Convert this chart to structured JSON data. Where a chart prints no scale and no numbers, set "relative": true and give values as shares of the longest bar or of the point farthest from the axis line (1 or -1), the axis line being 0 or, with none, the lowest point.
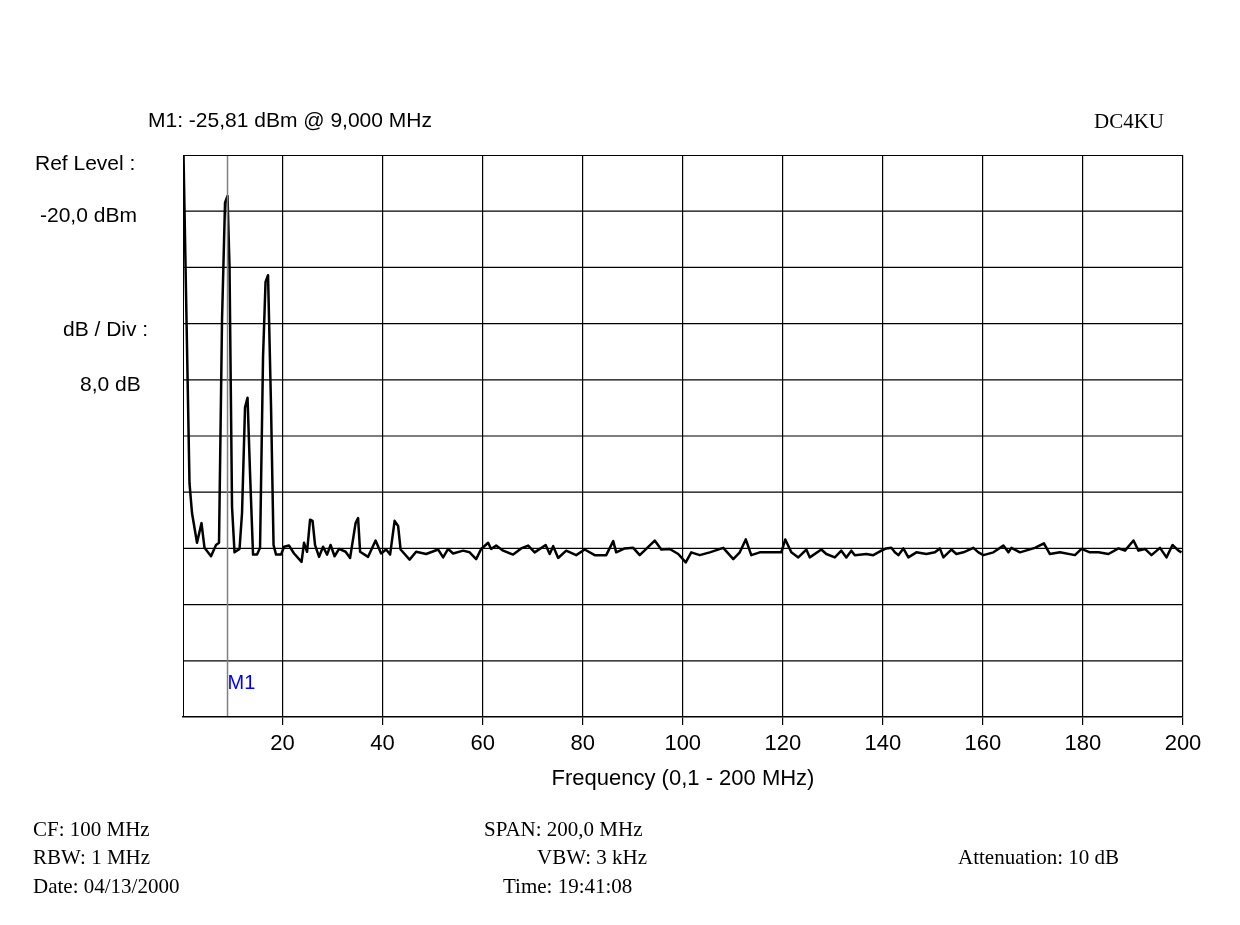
{
  "chart_data": {
    "type": "line",
    "xlabel": "Frequency (0,1 - 200 MHz)",
    "xlim": [
      0.1,
      200
    ],
    "xticks": [
      20,
      40,
      60,
      80,
      100,
      120,
      140,
      160,
      180,
      200
    ],
    "relative": true,
    "grid": true,
    "legend": false,
    "marker": "none",
    "line_style": "solid",
    "ref_lines": [
      {
        "axis": "x",
        "value": 9,
        "label": "M1",
        "color": "#808080"
      }
    ],
    "annotations": [
      "M1: -25,81 dBm @ 9,000 MHz",
      "DC4KU",
      "Ref Level :",
      "-20,0 dBm",
      "dB / Div :",
      "8,0 dB",
      "CF: 100 MHz",
      "RBW: 1 MHz",
      "Date: 04/13/2000",
      "SPAN: 200,0 MHz",
      "VBW: 3 kHz",
      "Time: 19:41:08",
      "Attenuation: 10 dB"
    ],
    "series": [
      {
        "color": "#000000",
        "x": [
          0.2,
          1.4,
          1.9,
          2.9,
          3.8,
          4.4,
          5.7,
          6.7,
          7.3,
          7.9,
          8.5,
          9.0,
          9.4,
          9.9,
          10.4,
          11.4,
          11.9,
          12.5,
          13.0,
          13.5,
          14.1,
          14.9,
          15.5,
          16.1,
          16.6,
          17.1,
          17.7,
          18.2,
          18.7,
          19.7,
          20.3,
          21.3,
          22.3,
          23.8,
          24.3,
          24.9,
          25.5,
          26.0,
          26.5,
          27.3,
          28.1,
          28.9,
          29.6,
          30.4,
          31.3,
          32.6,
          33.5,
          34.6,
          35.1,
          35.5,
          37.1,
          38.6,
          39.7,
          40.7,
          41.5,
          42.4,
          43.1,
          43.6,
          45.4,
          46.7,
          48.7,
          51.1,
          52.1,
          53.1,
          54.1,
          56.1,
          57.4,
          58.7,
          59.7,
          61.1,
          61.7,
          62.7,
          64.1,
          66.1,
          67.7,
          69.1,
          70.4,
          72.6,
          73.4,
          74.1,
          75.1,
          76.7,
          78.7,
          80.4,
          82.4,
          84.7,
          86.1,
          86.7,
          88.4,
          90.1,
          91.4,
          92.7,
          94.4,
          95.7,
          97.4,
          99.1,
          100.6,
          101.7,
          103.4,
          105.4,
          108.1,
          110.1,
          111.4,
          112.6,
          113.7,
          115.4,
          117.7,
          119.7,
          120.5,
          121.7,
          123.1,
          124.7,
          125.4,
          127.7,
          128.7,
          130.4,
          131.7,
          132.7,
          133.7,
          134.4,
          136.7,
          138.1,
          139.7,
          140.7,
          141.7,
          142.4,
          143.1,
          144.1,
          145.1,
          146.7,
          148.7,
          150.4,
          151.4,
          152.1,
          153.7,
          154.7,
          156.1,
          158.1,
          159.1,
          160.1,
          162.1,
          164.1,
          165.1,
          165.7,
          167.4,
          170.4,
          172.2,
          173.4,
          175.4,
          178.4,
          179.7,
          181.4,
          183.1,
          185.1,
          187.1,
          188.4,
          190.1,
          191.1,
          192.4,
          193.7,
          195.4,
          196.7,
          197.9,
          199.1,
          199.7
        ],
        "values": [
          1,
          0.416,
          0.363,
          0.31,
          0.345,
          0.301,
          0.286,
          0.306,
          0.31,
          0.706,
          0.915,
          0.927,
          0.801,
          0.374,
          0.293,
          0.299,
          0.363,
          0.551,
          0.568,
          0.434,
          0.289,
          0.289,
          0.301,
          0.641,
          0.774,
          0.786,
          0.551,
          0.306,
          0.289,
          0.289,
          0.303,
          0.305,
          0.291,
          0.276,
          0.31,
          0.294,
          0.351,
          0.349,
          0.306,
          0.285,
          0.303,
          0.289,
          0.306,
          0.286,
          0.299,
          0.294,
          0.283,
          0.345,
          0.354,
          0.294,
          0.285,
          0.314,
          0.291,
          0.298,
          0.289,
          0.349,
          0.34,
          0.298,
          0.28,
          0.294,
          0.29,
          0.298,
          0.284,
          0.299,
          0.291,
          0.296,
          0.293,
          0.281,
          0.299,
          0.31,
          0.299,
          0.305,
          0.296,
          0.289,
          0.3,
          0.305,
          0.293,
          0.306,
          0.29,
          0.304,
          0.283,
          0.296,
          0.288,
          0.298,
          0.288,
          0.288,
          0.313,
          0.293,
          0.3,
          0.301,
          0.288,
          0.299,
          0.314,
          0.298,
          0.299,
          0.29,
          0.275,
          0.293,
          0.288,
          0.293,
          0.301,
          0.281,
          0.293,
          0.316,
          0.288,
          0.293,
          0.293,
          0.293,
          0.316,
          0.293,
          0.284,
          0.298,
          0.284,
          0.298,
          0.29,
          0.284,
          0.296,
          0.284,
          0.296,
          0.288,
          0.29,
          0.288,
          0.296,
          0.3,
          0.301,
          0.293,
          0.288,
          0.3,
          0.284,
          0.293,
          0.29,
          0.293,
          0.3,
          0.284,
          0.298,
          0.29,
          0.293,
          0.301,
          0.293,
          0.288,
          0.293,
          0.305,
          0.293,
          0.301,
          0.293,
          0.301,
          0.309,
          0.29,
          0.293,
          0.288,
          0.299,
          0.293,
          0.293,
          0.29,
          0.3,
          0.296,
          0.314,
          0.296,
          0.299,
          0.288,
          0.301,
          0.284,
          0.306,
          0.296,
          0.293
        ]
      }
    ]
  }
}
